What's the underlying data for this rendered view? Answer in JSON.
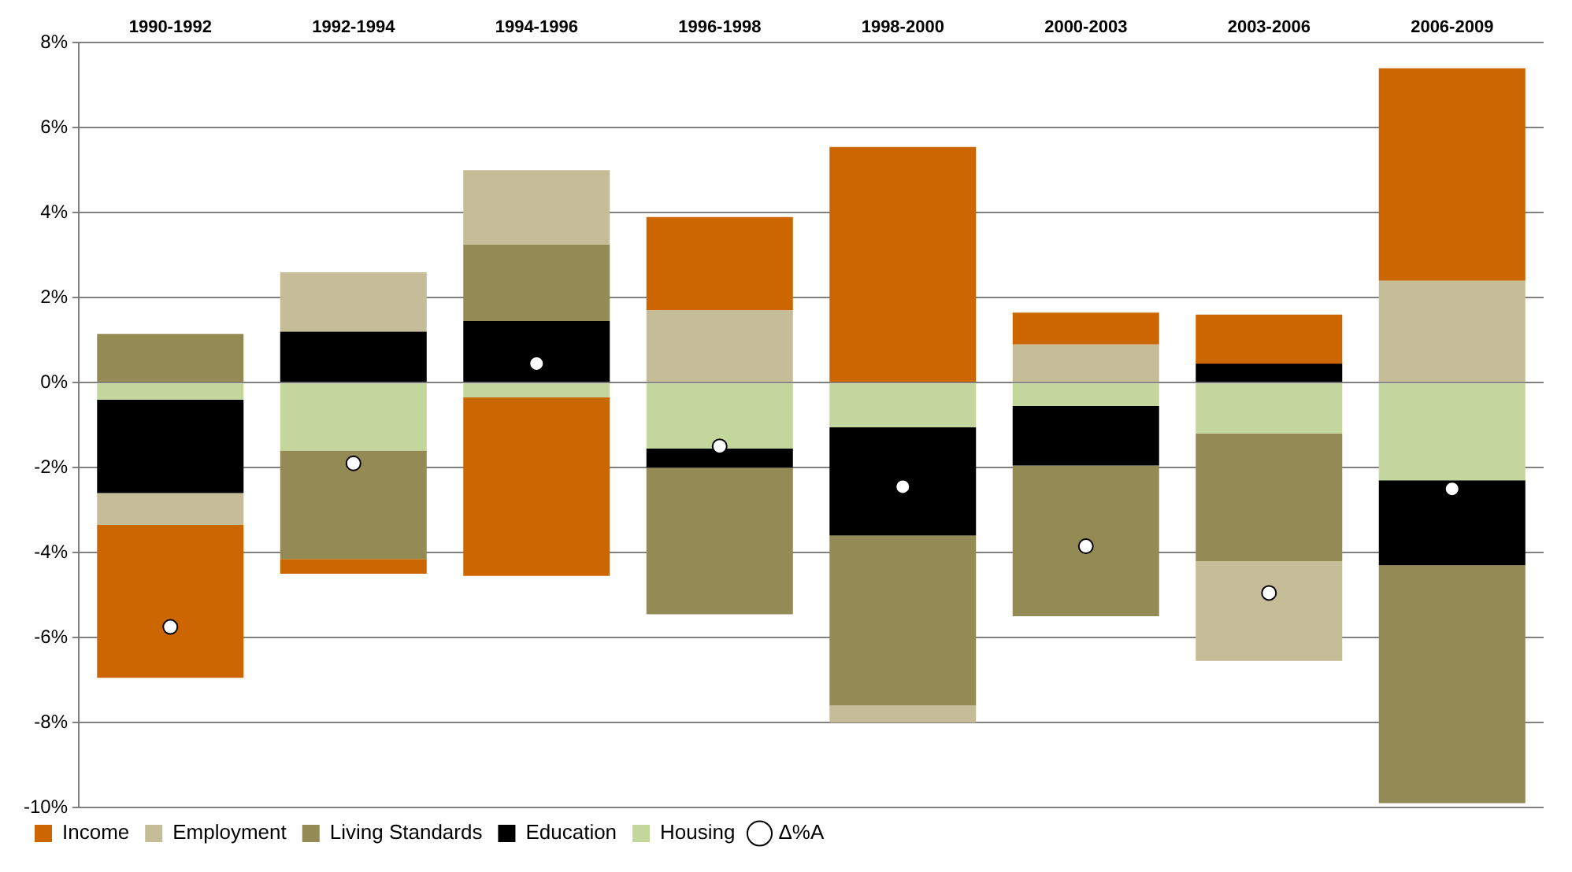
{
  "chart_data": {
    "type": "bar",
    "stacked": true,
    "categories": [
      "1990-1992",
      "1992-1994",
      "1994-1996",
      "1996-1998",
      "1998-2000",
      "2000-2003",
      "2003-2006",
      "2006-2009"
    ],
    "series": [
      {
        "name": "Housing",
        "color": "#c3d69b",
        "values": [
          -0.4,
          -1.6,
          -0.35,
          -1.55,
          -1.05,
          -0.55,
          -1.2,
          -2.3
        ]
      },
      {
        "name": "Education",
        "color": "#000000",
        "values": [
          -2.2,
          1.2,
          1.45,
          -0.45,
          -2.55,
          -1.4,
          0.45,
          -2.0
        ]
      },
      {
        "name": "Living Standards",
        "color": "#948a54",
        "values": [
          1.15,
          -2.55,
          1.8,
          -3.45,
          -4.0,
          -3.55,
          -3.0,
          -5.6
        ]
      },
      {
        "name": "Employment",
        "color": "#c4bd97",
        "values": [
          -0.75,
          1.4,
          1.75,
          1.7,
          -0.4,
          0.9,
          -2.35,
          2.4
        ]
      },
      {
        "name": "Income",
        "color": "#cc6600",
        "values": [
          -3.6,
          -0.35,
          -4.2,
          2.2,
          5.55,
          0.75,
          1.15,
          5.0
        ]
      },
      {
        "name": "Δ%A",
        "type": "scatter",
        "color": "#ffffff",
        "marker": "circle",
        "x": [
          "1990-1992",
          "1992-1994",
          "1994-1996",
          "1996-1998",
          "1998-2000",
          "2000-2003",
          "2003-2006",
          "2006-2009"
        ],
        "values": [
          -5.75,
          -1.9,
          0.45,
          -1.5,
          -2.45,
          -3.85,
          -4.95,
          -2.5
        ]
      }
    ],
    "ylim": [
      -10,
      8
    ],
    "yticks": [
      {
        "value": -10,
        "label": "-10%"
      },
      {
        "value": -8,
        "label": "-8%"
      },
      {
        "value": -6,
        "label": "-6%"
      },
      {
        "value": -4,
        "label": "-4%"
      },
      {
        "value": -2,
        "label": "-2%"
      },
      {
        "value": 0,
        "label": "0%"
      },
      {
        "value": 2,
        "label": "2%"
      },
      {
        "value": 4,
        "label": "4%"
      },
      {
        "value": 6,
        "label": "6%"
      },
      {
        "value": 8,
        "label": "8%"
      }
    ],
    "grid": "y",
    "legend": "bottom left"
  }
}
